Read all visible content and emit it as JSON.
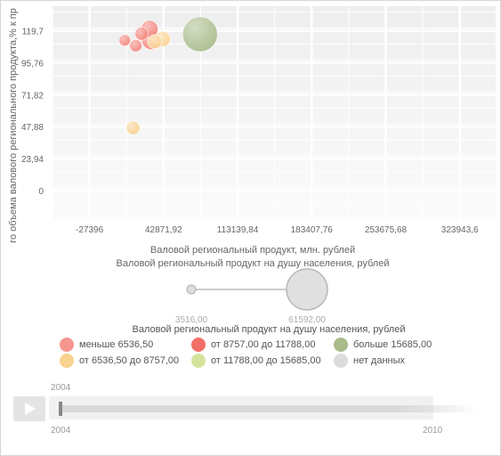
{
  "chart_data": {
    "type": "scatter",
    "title": "",
    "xlabel": "Валовой региональный продукт, млн. рублей",
    "ylabel": "го объема валового регионального продукта,% к пр",
    "size_label": "Валовой региональный продукт на душу населения, рублей",
    "x_ticks": [
      "-27396",
      "42871,92",
      "113139,84",
      "183407,76",
      "253675,68",
      "323943,6"
    ],
    "x_tick_values": [
      -27396,
      42871.92,
      113139.84,
      183407.76,
      253675.68,
      323943.6
    ],
    "y_ticks": [
      "0",
      "23,94",
      "47,88",
      "71,82",
      "95,76",
      "119,7"
    ],
    "y_tick_values": [
      0,
      23.94,
      47.88,
      71.82,
      95.76,
      119.7
    ],
    "xlim": [
      -62530,
      358000
    ],
    "ylim": [
      -22,
      138
    ],
    "grid": true,
    "points": [
      {
        "x": 6000,
        "y": 112.5,
        "size": 5500,
        "color": "#f4837b"
      },
      {
        "x": 16500,
        "y": 108.5,
        "size": 6300,
        "color": "#f4837b"
      },
      {
        "x": 22000,
        "y": 117.5,
        "size": 7200,
        "color": "#f4837b"
      },
      {
        "x": 29500,
        "y": 121.0,
        "size": 11500,
        "color": "#f4837b"
      },
      {
        "x": 31000,
        "y": 112.5,
        "size": 13500,
        "color": "#f4837b"
      },
      {
        "x": 34500,
        "y": 111.5,
        "size": 8100,
        "color": "#f9d28f"
      },
      {
        "x": 42000,
        "y": 113.5,
        "size": 9500,
        "color": "#f9d28f"
      },
      {
        "x": 14000,
        "y": 47.0,
        "size": 7400,
        "color": "#f9d28f"
      },
      {
        "x": 77500,
        "y": 117.0,
        "size": 45000,
        "color": "#a9bb8a"
      }
    ],
    "size_legend": {
      "min_label": "3516,00",
      "max_label": "61592,00",
      "min_value": 3516,
      "max_value": 61592
    },
    "legend": [
      {
        "label": "меньше 6536,50",
        "color": "#f7958f"
      },
      {
        "label": "от 6536,50 до 8757,00",
        "color": "#f9d28f"
      },
      {
        "label": "от 8757,00 до 11788,00",
        "color": "#f26f67"
      },
      {
        "label": "от 11788,00 до 15685,00",
        "color": "#d4e39c"
      },
      {
        "label": "больше 15685,00",
        "color": "#a9bb8a"
      },
      {
        "label": "нет данных",
        "color": "#dcdcdc"
      }
    ]
  },
  "timeline": {
    "current_year": "2004",
    "start_year": "2004",
    "end_year": "2010"
  }
}
